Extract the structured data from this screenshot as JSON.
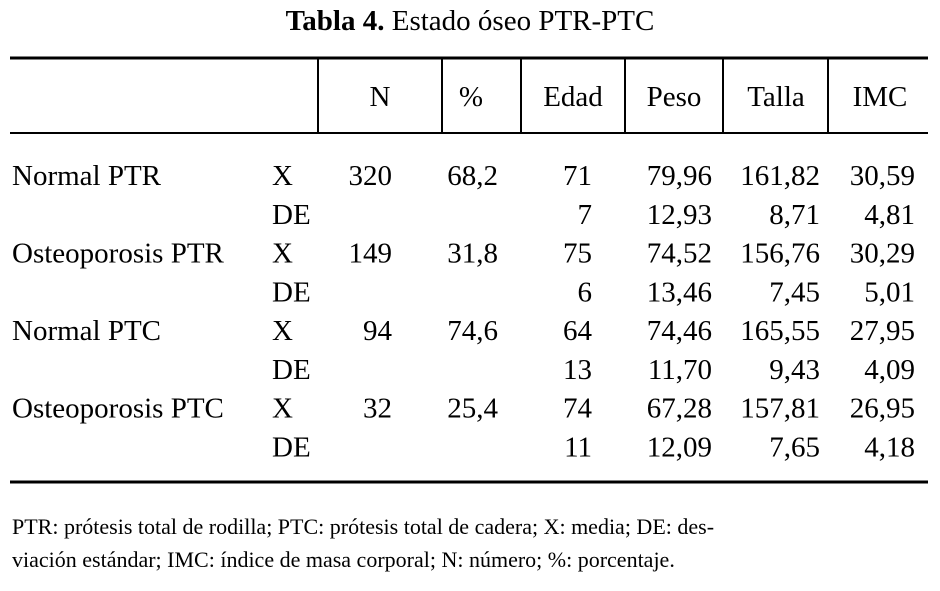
{
  "title": {
    "label": "Tabla 4.",
    "text": "Estado óseo PTR-PTC"
  },
  "table": {
    "header": [
      "N",
      "%",
      "Edad",
      "Peso",
      "Talla",
      "IMC"
    ],
    "groups": [
      {
        "label": "Normal PTR",
        "n": "320",
        "pct": "68,2",
        "mean": {
          "label": "X",
          "values": [
            "71",
            "79,96",
            "161,82",
            "30,59"
          ]
        },
        "sd": {
          "label": "DE",
          "values": [
            "7",
            "12,93",
            "8,71",
            "4,81"
          ]
        }
      },
      {
        "label": "Osteoporosis PTR",
        "n": "149",
        "pct": "31,8",
        "mean": {
          "label": "X",
          "values": [
            "75",
            "74,52",
            "156,76",
            "30,29"
          ]
        },
        "sd": {
          "label": "DE",
          "values": [
            "6",
            "13,46",
            "7,45",
            "5,01"
          ]
        }
      },
      {
        "label": "Normal PTC",
        "n": "94",
        "pct": "74,6",
        "mean": {
          "label": "X",
          "values": [
            "64",
            "74,46",
            "165,55",
            "27,95"
          ]
        },
        "sd": {
          "label": "DE",
          "values": [
            "13",
            "11,70",
            "9,43",
            "4,09"
          ]
        }
      },
      {
        "label": "Osteoporosis PTC",
        "n": "32",
        "pct": "25,4",
        "mean": {
          "label": "X",
          "values": [
            "74",
            "67,28",
            "157,81",
            "26,95"
          ]
        },
        "sd": {
          "label": "DE",
          "values": [
            "11",
            "12,09",
            "7,65",
            "4,18"
          ]
        }
      }
    ]
  },
  "footnote": [
    "PTR: prótesis total de rodilla; PTC: prótesis total de cadera; X: media; DE: des-",
    "viación estándar; IMC: índice de masa corporal; N: número; %: porcentaje."
  ]
}
